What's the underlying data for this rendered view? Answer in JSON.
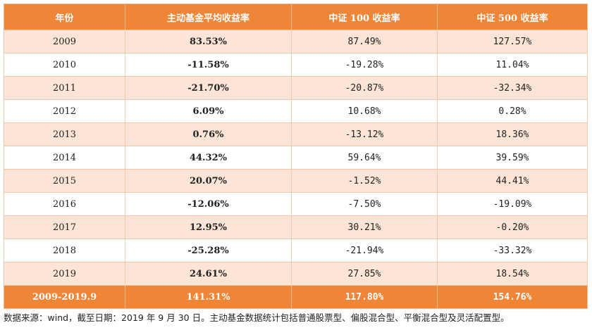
{
  "table": {
    "header": [
      "年份",
      "主动基金平均收益率",
      "中证 100 收益率",
      "中证 500 收益率"
    ],
    "rows": [
      [
        "2009",
        "83.53%",
        "87.49%",
        "127.57%"
      ],
      [
        "2010",
        "-11.58%",
        "-19.28%",
        "11.04%"
      ],
      [
        "2011",
        "-21.70%",
        "-20.87%",
        "-32.34%"
      ],
      [
        "2012",
        "6.09%",
        "10.68%",
        "0.28%"
      ],
      [
        "2013",
        "0.76%",
        "-13.12%",
        "18.36%"
      ],
      [
        "2014",
        "44.32%",
        "59.64%",
        "39.59%"
      ],
      [
        "2015",
        "20.07%",
        "-1.52%",
        "44.41%"
      ],
      [
        "2016",
        "-12.06%",
        "-7.50%",
        "-19.09%"
      ],
      [
        "2017",
        "12.95%",
        "30.21%",
        "-0.20%"
      ],
      [
        "2018",
        "-25.28%",
        "-21.94%",
        "-33.32%"
      ],
      [
        "2019",
        "24.61%",
        "27.85%",
        "18.54%"
      ]
    ],
    "total": [
      "2009-2019.9",
      "141.31%",
      "117.80%",
      "154.76%"
    ]
  },
  "note": "数据来源：wind，截至日期：2019 年 9 月 30 日。主动基金数据统计包括普通股票型、偏股混合型、平衡混合型及灵活配置型。"
}
